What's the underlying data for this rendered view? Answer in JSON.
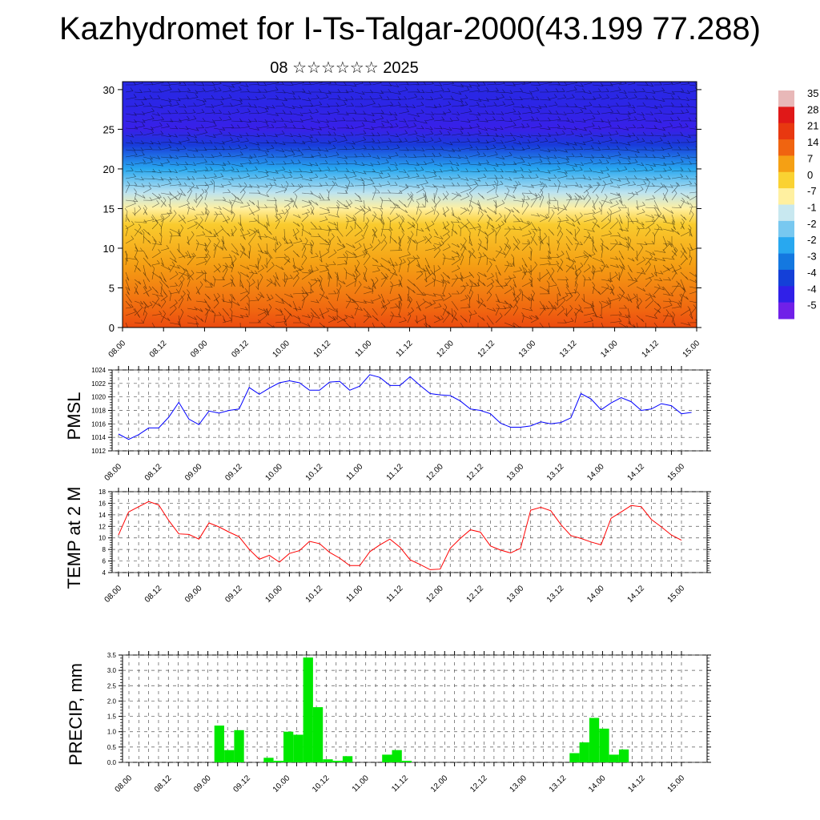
{
  "page": {
    "title": "Kazhydromet for I-Ts-Talgar-2000(43.199 77.288)",
    "subtitle": "08 ☆☆☆☆☆☆ 2025"
  },
  "time_ticks": [
    "08.00",
    "08.12",
    "09.00",
    "09.12",
    "10.00",
    "10.12",
    "11.00",
    "11.12",
    "12.00",
    "12.12",
    "13.00",
    "13.12",
    "14.00",
    "14.12",
    "15.00"
  ],
  "chart_data": [
    {
      "type": "heatmap",
      "title": "Kazhydromet for I-Ts-Talgar-2000(43.199 77.288)",
      "subtitle": "08 ☆☆☆☆☆☆ 2025",
      "ylabel": "",
      "ylim": [
        0,
        31
      ],
      "yticks": [
        0,
        5,
        10,
        15,
        20,
        25,
        30
      ],
      "colorbar_labels": [
        "35",
        "28",
        "21",
        "14",
        "7",
        "0",
        "-7",
        "-1",
        "-2",
        "-2",
        "-3",
        "-4",
        "-4",
        "-5"
      ],
      "colorbar_colors": [
        "#e8b8b8",
        "#e01818",
        "#e83810",
        "#f06410",
        "#f5a014",
        "#fad232",
        "#fff0a0",
        "#c8e8f0",
        "#78c8f0",
        "#28a8f0",
        "#1478e0",
        "#1440d8",
        "#3020e8",
        "#7020e8"
      ],
      "color_profile": [
        {
          "height": 0,
          "value": 18
        },
        {
          "height": 2,
          "value": 14
        },
        {
          "height": 8,
          "value": 7
        },
        {
          "height": 13,
          "value": 1
        },
        {
          "height": 15,
          "value": -7
        },
        {
          "height": 17,
          "value": -15
        },
        {
          "height": 20,
          "value": -28
        },
        {
          "height": 23,
          "value": -43
        },
        {
          "height": 25,
          "value": -50
        },
        {
          "height": 28,
          "value": -48
        },
        {
          "height": 31,
          "value": -47
        }
      ]
    },
    {
      "type": "line",
      "ylabel": "PMSL",
      "ylim": [
        1012,
        1024
      ],
      "yticks": [
        1012,
        1014,
        1016,
        1018,
        1020,
        1022,
        1024
      ],
      "color": "#0000ff",
      "x_step_hours": 3,
      "series": [
        {
          "values": [
            1014.5,
            1013.7,
            1014.4,
            1015.4,
            1015.4,
            1017.0,
            1019.2,
            1016.7,
            1015.9,
            1017.9,
            1017.6,
            1018.0,
            1018.2,
            1021.4,
            1020.4,
            1021.3,
            1022.1,
            1022.4,
            1022.1,
            1021.0,
            1021.0,
            1022.2,
            1022.3,
            1021.0,
            1021.6,
            1023.3,
            1022.9,
            1021.7,
            1021.7,
            1023.0,
            1021.7,
            1020.5,
            1020.3,
            1020.2,
            1019.4,
            1018.2,
            1018.0,
            1017.5,
            1016.1,
            1015.5,
            1015.5,
            1015.7,
            1016.3,
            1016.0,
            1016.2,
            1016.9,
            1020.5,
            1019.7,
            1018.1,
            1019.1,
            1019.9,
            1019.3,
            1018.0,
            1018.2,
            1019.0,
            1018.7,
            1017.5,
            1017.7
          ]
        }
      ]
    },
    {
      "type": "line",
      "ylabel": "TEMP at 2 M",
      "ylim": [
        4,
        18
      ],
      "yticks": [
        4,
        6,
        8,
        10,
        12,
        14,
        16,
        18
      ],
      "color": "#ff0000",
      "x_step_hours": 3,
      "series": [
        {
          "values": [
            10.5,
            14.5,
            15.4,
            16.3,
            15.7,
            13.0,
            10.7,
            10.6,
            9.8,
            12.6,
            11.9,
            11.0,
            10.2,
            8.0,
            6.3,
            7.0,
            5.8,
            7.3,
            7.8,
            9.4,
            9.0,
            7.5,
            6.5,
            5.2,
            5.2,
            7.6,
            8.8,
            9.8,
            8.4,
            6.2,
            5.4,
            4.5,
            4.6,
            8.2,
            9.9,
            11.4,
            11.0,
            8.6,
            7.9,
            7.4,
            8.2,
            14.8,
            15.3,
            14.7,
            12.3,
            10.4,
            9.9,
            9.3,
            8.8,
            13.4,
            14.5,
            15.6,
            15.4,
            13.2,
            11.9,
            10.5,
            9.6
          ]
        }
      ]
    },
    {
      "type": "bar",
      "ylabel": "PRECIP, mm",
      "ylim": [
        0,
        3.5
      ],
      "yticks": [
        "0.0",
        "0.5",
        "1.0",
        "1.5",
        "2.0",
        "2.5",
        "3.0",
        "3.5"
      ],
      "color": "#00e800",
      "x_step_hours": 3,
      "values": [
        0,
        0,
        0,
        0,
        0,
        0,
        0,
        0,
        1.2,
        0.4,
        1.05,
        0,
        0,
        0.15,
        0.05,
        1.0,
        0.9,
        3.42,
        1.8,
        0.1,
        0.05,
        0.2,
        0,
        0,
        0,
        0.25,
        0.4,
        0.05,
        0,
        0,
        0,
        0,
        0,
        0,
        0,
        0,
        0,
        0,
        0,
        0,
        0,
        0,
        0,
        0,
        0.3,
        0.65,
        1.45,
        1.1,
        0.25,
        0.42,
        0,
        0,
        0,
        0,
        0,
        0
      ]
    }
  ]
}
